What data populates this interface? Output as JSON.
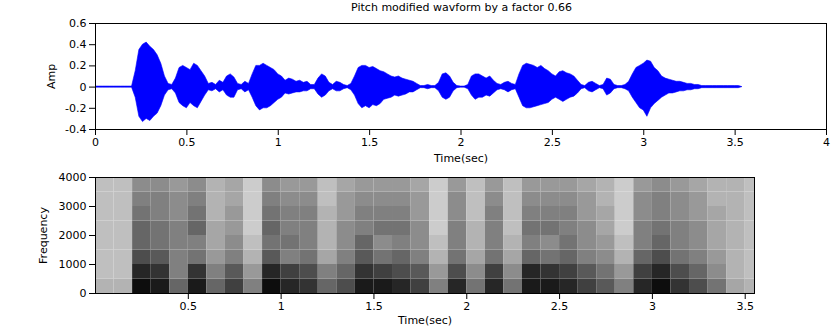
{
  "chart_data": [
    {
      "type": "area",
      "title": "Pitch modified wavform by a factor 0.66",
      "x_label": "Time(sec)",
      "y_label": "Amp",
      "xlim": [
        0,
        4
      ],
      "xticks": [
        0,
        0.5,
        1,
        1.5,
        2,
        2.5,
        3,
        3.5,
        4
      ],
      "ylim": [
        -0.4,
        0.6
      ],
      "yticks": [
        -0.4,
        -0.2,
        0,
        0.2,
        0.4,
        0.6
      ],
      "color": "#0000ff",
      "envelope": [
        [
          0,
          0.005,
          -0.005
        ],
        [
          0.02,
          0.005,
          -0.005
        ],
        [
          0.04,
          0.005,
          -0.005
        ],
        [
          0.06,
          0.005,
          -0.005
        ],
        [
          0.08,
          0.005,
          -0.005
        ],
        [
          0.1,
          0.005,
          -0.005
        ],
        [
          0.12,
          0.005,
          -0.005
        ],
        [
          0.14,
          0.005,
          -0.005
        ],
        [
          0.16,
          0.005,
          -0.005
        ],
        [
          0.18,
          0.005,
          -0.005
        ],
        [
          0.2,
          0.005,
          -0.005
        ],
        [
          0.22,
          0.15,
          -0.1
        ],
        [
          0.24,
          0.35,
          -0.28
        ],
        [
          0.26,
          0.4,
          -0.33
        ],
        [
          0.28,
          0.42,
          -0.3
        ],
        [
          0.3,
          0.38,
          -0.32
        ],
        [
          0.32,
          0.35,
          -0.28
        ],
        [
          0.34,
          0.3,
          -0.25
        ],
        [
          0.36,
          0.22,
          -0.18
        ],
        [
          0.38,
          0.1,
          -0.08
        ],
        [
          0.4,
          0.03,
          -0.03
        ],
        [
          0.42,
          0.02,
          -0.02
        ],
        [
          0.44,
          0.08,
          -0.06
        ],
        [
          0.46,
          0.18,
          -0.15
        ],
        [
          0.48,
          0.2,
          -0.18
        ],
        [
          0.5,
          0.18,
          -0.2
        ],
        [
          0.52,
          0.16,
          -0.15
        ],
        [
          0.54,
          0.22,
          -0.18
        ],
        [
          0.56,
          0.2,
          -0.2
        ],
        [
          0.58,
          0.15,
          -0.14
        ],
        [
          0.6,
          0.1,
          -0.08
        ],
        [
          0.62,
          0.03,
          -0.03
        ],
        [
          0.64,
          0.04,
          -0.04
        ],
        [
          0.66,
          0.02,
          -0.02
        ],
        [
          0.68,
          0.06,
          -0.05
        ],
        [
          0.7,
          0.04,
          -0.03
        ],
        [
          0.72,
          0.1,
          -0.08
        ],
        [
          0.74,
          0.12,
          -0.1
        ],
        [
          0.76,
          0.09,
          -0.1
        ],
        [
          0.78,
          0.03,
          -0.03
        ],
        [
          0.8,
          0.02,
          -0.02
        ],
        [
          0.82,
          0.05,
          -0.05
        ],
        [
          0.84,
          0.03,
          -0.03
        ],
        [
          0.86,
          0.12,
          -0.1
        ],
        [
          0.88,
          0.2,
          -0.18
        ],
        [
          0.9,
          0.2,
          -0.22
        ],
        [
          0.92,
          0.22,
          -0.2
        ],
        [
          0.94,
          0.2,
          -0.2
        ],
        [
          0.96,
          0.18,
          -0.18
        ],
        [
          0.98,
          0.16,
          -0.15
        ],
        [
          1,
          0.12,
          -0.12
        ],
        [
          1.02,
          0.1,
          -0.1
        ],
        [
          1.04,
          0.06,
          -0.06
        ],
        [
          1.06,
          0.08,
          -0.07
        ],
        [
          1.08,
          0.07,
          -0.06
        ],
        [
          1.1,
          0.05,
          -0.05
        ],
        [
          1.12,
          0.06,
          -0.05
        ],
        [
          1.14,
          0.04,
          -0.04
        ],
        [
          1.16,
          0.05,
          -0.04
        ],
        [
          1.18,
          0.02,
          -0.02
        ],
        [
          1.2,
          0.02,
          -0.02
        ],
        [
          1.22,
          0.08,
          -0.07
        ],
        [
          1.24,
          0.12,
          -0.1
        ],
        [
          1.26,
          0.1,
          -0.08
        ],
        [
          1.28,
          0.04,
          -0.04
        ],
        [
          1.3,
          0.02,
          -0.02
        ],
        [
          1.32,
          0.05,
          -0.04
        ],
        [
          1.34,
          0.04,
          -0.04
        ],
        [
          1.36,
          0.02,
          -0.02
        ],
        [
          1.38,
          0.01,
          -0.01
        ],
        [
          1.4,
          0.03,
          -0.03
        ],
        [
          1.42,
          0.1,
          -0.08
        ],
        [
          1.44,
          0.18,
          -0.16
        ],
        [
          1.46,
          0.2,
          -0.2
        ],
        [
          1.48,
          0.2,
          -0.18
        ],
        [
          1.5,
          0.18,
          -0.2
        ],
        [
          1.52,
          0.19,
          -0.17
        ],
        [
          1.54,
          0.17,
          -0.18
        ],
        [
          1.56,
          0.15,
          -0.16
        ],
        [
          1.58,
          0.14,
          -0.12
        ],
        [
          1.6,
          0.12,
          -0.11
        ],
        [
          1.62,
          0.1,
          -0.1
        ],
        [
          1.64,
          0.09,
          -0.08
        ],
        [
          1.66,
          0.1,
          -0.09
        ],
        [
          1.68,
          0.08,
          -0.08
        ],
        [
          1.7,
          0.07,
          -0.07
        ],
        [
          1.72,
          0.06,
          -0.05
        ],
        [
          1.74,
          0.05,
          -0.05
        ],
        [
          1.76,
          0.03,
          -0.03
        ],
        [
          1.78,
          0.01,
          -0.01
        ],
        [
          1.8,
          0.01,
          -0.01
        ],
        [
          1.82,
          0.02,
          -0.02
        ],
        [
          1.84,
          0.01,
          -0.01
        ],
        [
          1.86,
          0.01,
          -0.01
        ],
        [
          1.88,
          0.04,
          -0.04
        ],
        [
          1.9,
          0.12,
          -0.1
        ],
        [
          1.92,
          0.13,
          -0.12
        ],
        [
          1.94,
          0.1,
          -0.1
        ],
        [
          1.96,
          0.04,
          -0.04
        ],
        [
          1.98,
          0.01,
          -0.01
        ],
        [
          2,
          0.005,
          -0.005
        ],
        [
          2.02,
          0.005,
          -0.005
        ],
        [
          2.04,
          0.02,
          -0.02
        ],
        [
          2.06,
          0.1,
          -0.08
        ],
        [
          2.08,
          0.12,
          -0.12
        ],
        [
          2.1,
          0.12,
          -0.1
        ],
        [
          2.12,
          0.1,
          -0.1
        ],
        [
          2.14,
          0.08,
          -0.08
        ],
        [
          2.16,
          0.1,
          -0.09
        ],
        [
          2.18,
          0.06,
          -0.06
        ],
        [
          2.2,
          0.03,
          -0.03
        ],
        [
          2.22,
          0.02,
          -0.02
        ],
        [
          2.24,
          0.04,
          -0.03
        ],
        [
          2.26,
          0.05,
          -0.05
        ],
        [
          2.28,
          0.03,
          -0.03
        ],
        [
          2.3,
          0.02,
          -0.02
        ],
        [
          2.32,
          0.12,
          -0.1
        ],
        [
          2.34,
          0.2,
          -0.18
        ],
        [
          2.36,
          0.22,
          -0.2
        ],
        [
          2.38,
          0.21,
          -0.2
        ],
        [
          2.4,
          0.2,
          -0.19
        ],
        [
          2.42,
          0.18,
          -0.18
        ],
        [
          2.44,
          0.2,
          -0.17
        ],
        [
          2.46,
          0.17,
          -0.16
        ],
        [
          2.48,
          0.15,
          -0.15
        ],
        [
          2.5,
          0.12,
          -0.12
        ],
        [
          2.52,
          0.1,
          -0.1
        ],
        [
          2.54,
          0.14,
          -0.12
        ],
        [
          2.56,
          0.15,
          -0.14
        ],
        [
          2.58,
          0.13,
          -0.12
        ],
        [
          2.6,
          0.12,
          -0.1
        ],
        [
          2.62,
          0.1,
          -0.09
        ],
        [
          2.64,
          0.06,
          -0.06
        ],
        [
          2.66,
          0.02,
          -0.02
        ],
        [
          2.68,
          0.01,
          -0.01
        ],
        [
          2.7,
          0.04,
          -0.04
        ],
        [
          2.72,
          0.05,
          -0.05
        ],
        [
          2.74,
          0.03,
          -0.03
        ],
        [
          2.76,
          0.01,
          -0.01
        ],
        [
          2.78,
          0.02,
          -0.02
        ],
        [
          2.8,
          0.08,
          -0.08
        ],
        [
          2.82,
          0.07,
          -0.06
        ],
        [
          2.84,
          0.02,
          -0.02
        ],
        [
          2.86,
          0.01,
          -0.01
        ],
        [
          2.88,
          0.01,
          -0.01
        ],
        [
          2.9,
          0.02,
          -0.02
        ],
        [
          2.92,
          0.05,
          -0.04
        ],
        [
          2.94,
          0.12,
          -0.1
        ],
        [
          2.96,
          0.18,
          -0.15
        ],
        [
          2.98,
          0.2,
          -0.2
        ],
        [
          3,
          0.22,
          -0.22
        ],
        [
          3.02,
          0.25,
          -0.28
        ],
        [
          3.04,
          0.24,
          -0.2
        ],
        [
          3.06,
          0.18,
          -0.16
        ],
        [
          3.08,
          0.15,
          -0.13
        ],
        [
          3.1,
          0.1,
          -0.1
        ],
        [
          3.12,
          0.08,
          -0.08
        ],
        [
          3.14,
          0.07,
          -0.06
        ],
        [
          3.16,
          0.06,
          -0.06
        ],
        [
          3.18,
          0.05,
          -0.05
        ],
        [
          3.2,
          0.05,
          -0.04
        ],
        [
          3.22,
          0.04,
          -0.04
        ],
        [
          3.24,
          0.03,
          -0.03
        ],
        [
          3.26,
          0.03,
          -0.03
        ],
        [
          3.28,
          0.02,
          -0.02
        ],
        [
          3.3,
          0.02,
          -0.02
        ],
        [
          3.32,
          0.01,
          -0.01
        ],
        [
          3.34,
          0.01,
          -0.01
        ],
        [
          3.36,
          0.01,
          -0.01
        ],
        [
          3.38,
          0.01,
          -0.01
        ],
        [
          3.4,
          0.01,
          -0.01
        ],
        [
          3.42,
          0.01,
          -0.01
        ],
        [
          3.44,
          0.01,
          -0.01
        ],
        [
          3.46,
          0.01,
          -0.01
        ],
        [
          3.48,
          0.01,
          -0.01
        ],
        [
          3.5,
          0.01,
          -0.01
        ],
        [
          3.52,
          0.01,
          -0.01
        ],
        [
          3.54,
          0,
          0
        ]
      ]
    },
    {
      "type": "heatmap",
      "x_label": "Time(sec)",
      "y_label": "Frequency",
      "xlim": [
        0,
        3.55
      ],
      "xticks": [
        0.5,
        1,
        1.5,
        2,
        2.5,
        3,
        3.5
      ],
      "ylim": [
        0,
        4000
      ],
      "yticks": [
        0,
        1000,
        2000,
        3000,
        4000
      ],
      "zlim": [
        0,
        1
      ],
      "time_bins": [
        0,
        0.1,
        0.2,
        0.3,
        0.4,
        0.5,
        0.6,
        0.7,
        0.8,
        0.9,
        1,
        1.1,
        1.2,
        1.3,
        1.4,
        1.5,
        1.6,
        1.7,
        1.8,
        1.9,
        2,
        2.1,
        2.2,
        2.3,
        2.4,
        2.5,
        2.6,
        2.7,
        2.8,
        2.9,
        3,
        3.1,
        3.2,
        3.3,
        3.4,
        3.5,
        3.55
      ],
      "frequency_bins": [
        0,
        500,
        1000,
        1500,
        2000,
        2500,
        3000,
        3500,
        4000
      ],
      "cells": [
        [
          0.3,
          0.25,
          0.25,
          0.25,
          0.25,
          0.25,
          0.25,
          0.25
        ],
        [
          0.3,
          0.25,
          0.25,
          0.25,
          0.25,
          0.25,
          0.25,
          0.25
        ],
        [
          0.95,
          0.85,
          0.7,
          0.6,
          0.6,
          0.55,
          0.5,
          0.45
        ],
        [
          0.9,
          0.8,
          0.65,
          0.55,
          0.55,
          0.5,
          0.5,
          0.45
        ],
        [
          0.6,
          0.5,
          0.5,
          0.5,
          0.5,
          0.45,
          0.45,
          0.4
        ],
        [
          0.9,
          0.8,
          0.55,
          0.5,
          0.6,
          0.55,
          0.5,
          0.45
        ],
        [
          0.6,
          0.5,
          0.4,
          0.35,
          0.35,
          0.3,
          0.3,
          0.3
        ],
        [
          0.75,
          0.65,
          0.5,
          0.45,
          0.4,
          0.4,
          0.35,
          0.35
        ],
        [
          0.5,
          0.4,
          0.3,
          0.25,
          0.2,
          0.2,
          0.2,
          0.2
        ],
        [
          0.95,
          0.85,
          0.65,
          0.55,
          0.6,
          0.55,
          0.5,
          0.45
        ],
        [
          0.85,
          0.75,
          0.5,
          0.55,
          0.5,
          0.5,
          0.45,
          0.4
        ],
        [
          0.8,
          0.7,
          0.55,
          0.5,
          0.5,
          0.5,
          0.45,
          0.4
        ],
        [
          0.6,
          0.5,
          0.35,
          0.3,
          0.3,
          0.3,
          0.25,
          0.25
        ],
        [
          0.7,
          0.6,
          0.5,
          0.45,
          0.45,
          0.4,
          0.4,
          0.35
        ],
        [
          0.9,
          0.8,
          0.65,
          0.6,
          0.5,
          0.5,
          0.45,
          0.4
        ],
        [
          0.9,
          0.75,
          0.55,
          0.45,
          0.55,
          0.5,
          0.45,
          0.4
        ],
        [
          0.85,
          0.7,
          0.6,
          0.5,
          0.55,
          0.5,
          0.45,
          0.4
        ],
        [
          0.75,
          0.65,
          0.5,
          0.45,
          0.45,
          0.4,
          0.4,
          0.35
        ],
        [
          0.5,
          0.4,
          0.3,
          0.25,
          0.2,
          0.2,
          0.2,
          0.2
        ],
        [
          0.85,
          0.7,
          0.55,
          0.5,
          0.5,
          0.45,
          0.45,
          0.4
        ],
        [
          0.55,
          0.45,
          0.35,
          0.3,
          0.3,
          0.25,
          0.25,
          0.25
        ],
        [
          0.85,
          0.75,
          0.55,
          0.5,
          0.5,
          0.5,
          0.45,
          0.4
        ],
        [
          0.55,
          0.45,
          0.35,
          0.3,
          0.25,
          0.25,
          0.25,
          0.25
        ],
        [
          0.9,
          0.85,
          0.6,
          0.5,
          0.55,
          0.5,
          0.45,
          0.4
        ],
        [
          0.9,
          0.8,
          0.55,
          0.45,
          0.55,
          0.5,
          0.45,
          0.4
        ],
        [
          0.85,
          0.75,
          0.6,
          0.55,
          0.5,
          0.5,
          0.45,
          0.4
        ],
        [
          0.75,
          0.65,
          0.5,
          0.45,
          0.45,
          0.4,
          0.4,
          0.35
        ],
        [
          0.65,
          0.55,
          0.45,
          0.4,
          0.35,
          0.35,
          0.3,
          0.3
        ],
        [
          0.5,
          0.4,
          0.3,
          0.25,
          0.2,
          0.2,
          0.2,
          0.2
        ],
        [
          0.85,
          0.75,
          0.6,
          0.5,
          0.5,
          0.45,
          0.45,
          0.4
        ],
        [
          0.95,
          0.85,
          0.7,
          0.6,
          0.55,
          0.5,
          0.5,
          0.45
        ],
        [
          0.8,
          0.7,
          0.55,
          0.5,
          0.5,
          0.45,
          0.45,
          0.4
        ],
        [
          0.7,
          0.6,
          0.5,
          0.45,
          0.45,
          0.4,
          0.4,
          0.35
        ],
        [
          0.55,
          0.45,
          0.4,
          0.35,
          0.35,
          0.35,
          0.3,
          0.3
        ],
        [
          0.35,
          0.3,
          0.3,
          0.3,
          0.3,
          0.3,
          0.3,
          0.3
        ],
        [
          0.3,
          0.25,
          0.25,
          0.25,
          0.25,
          0.25,
          0.25,
          0.25
        ]
      ]
    }
  ]
}
